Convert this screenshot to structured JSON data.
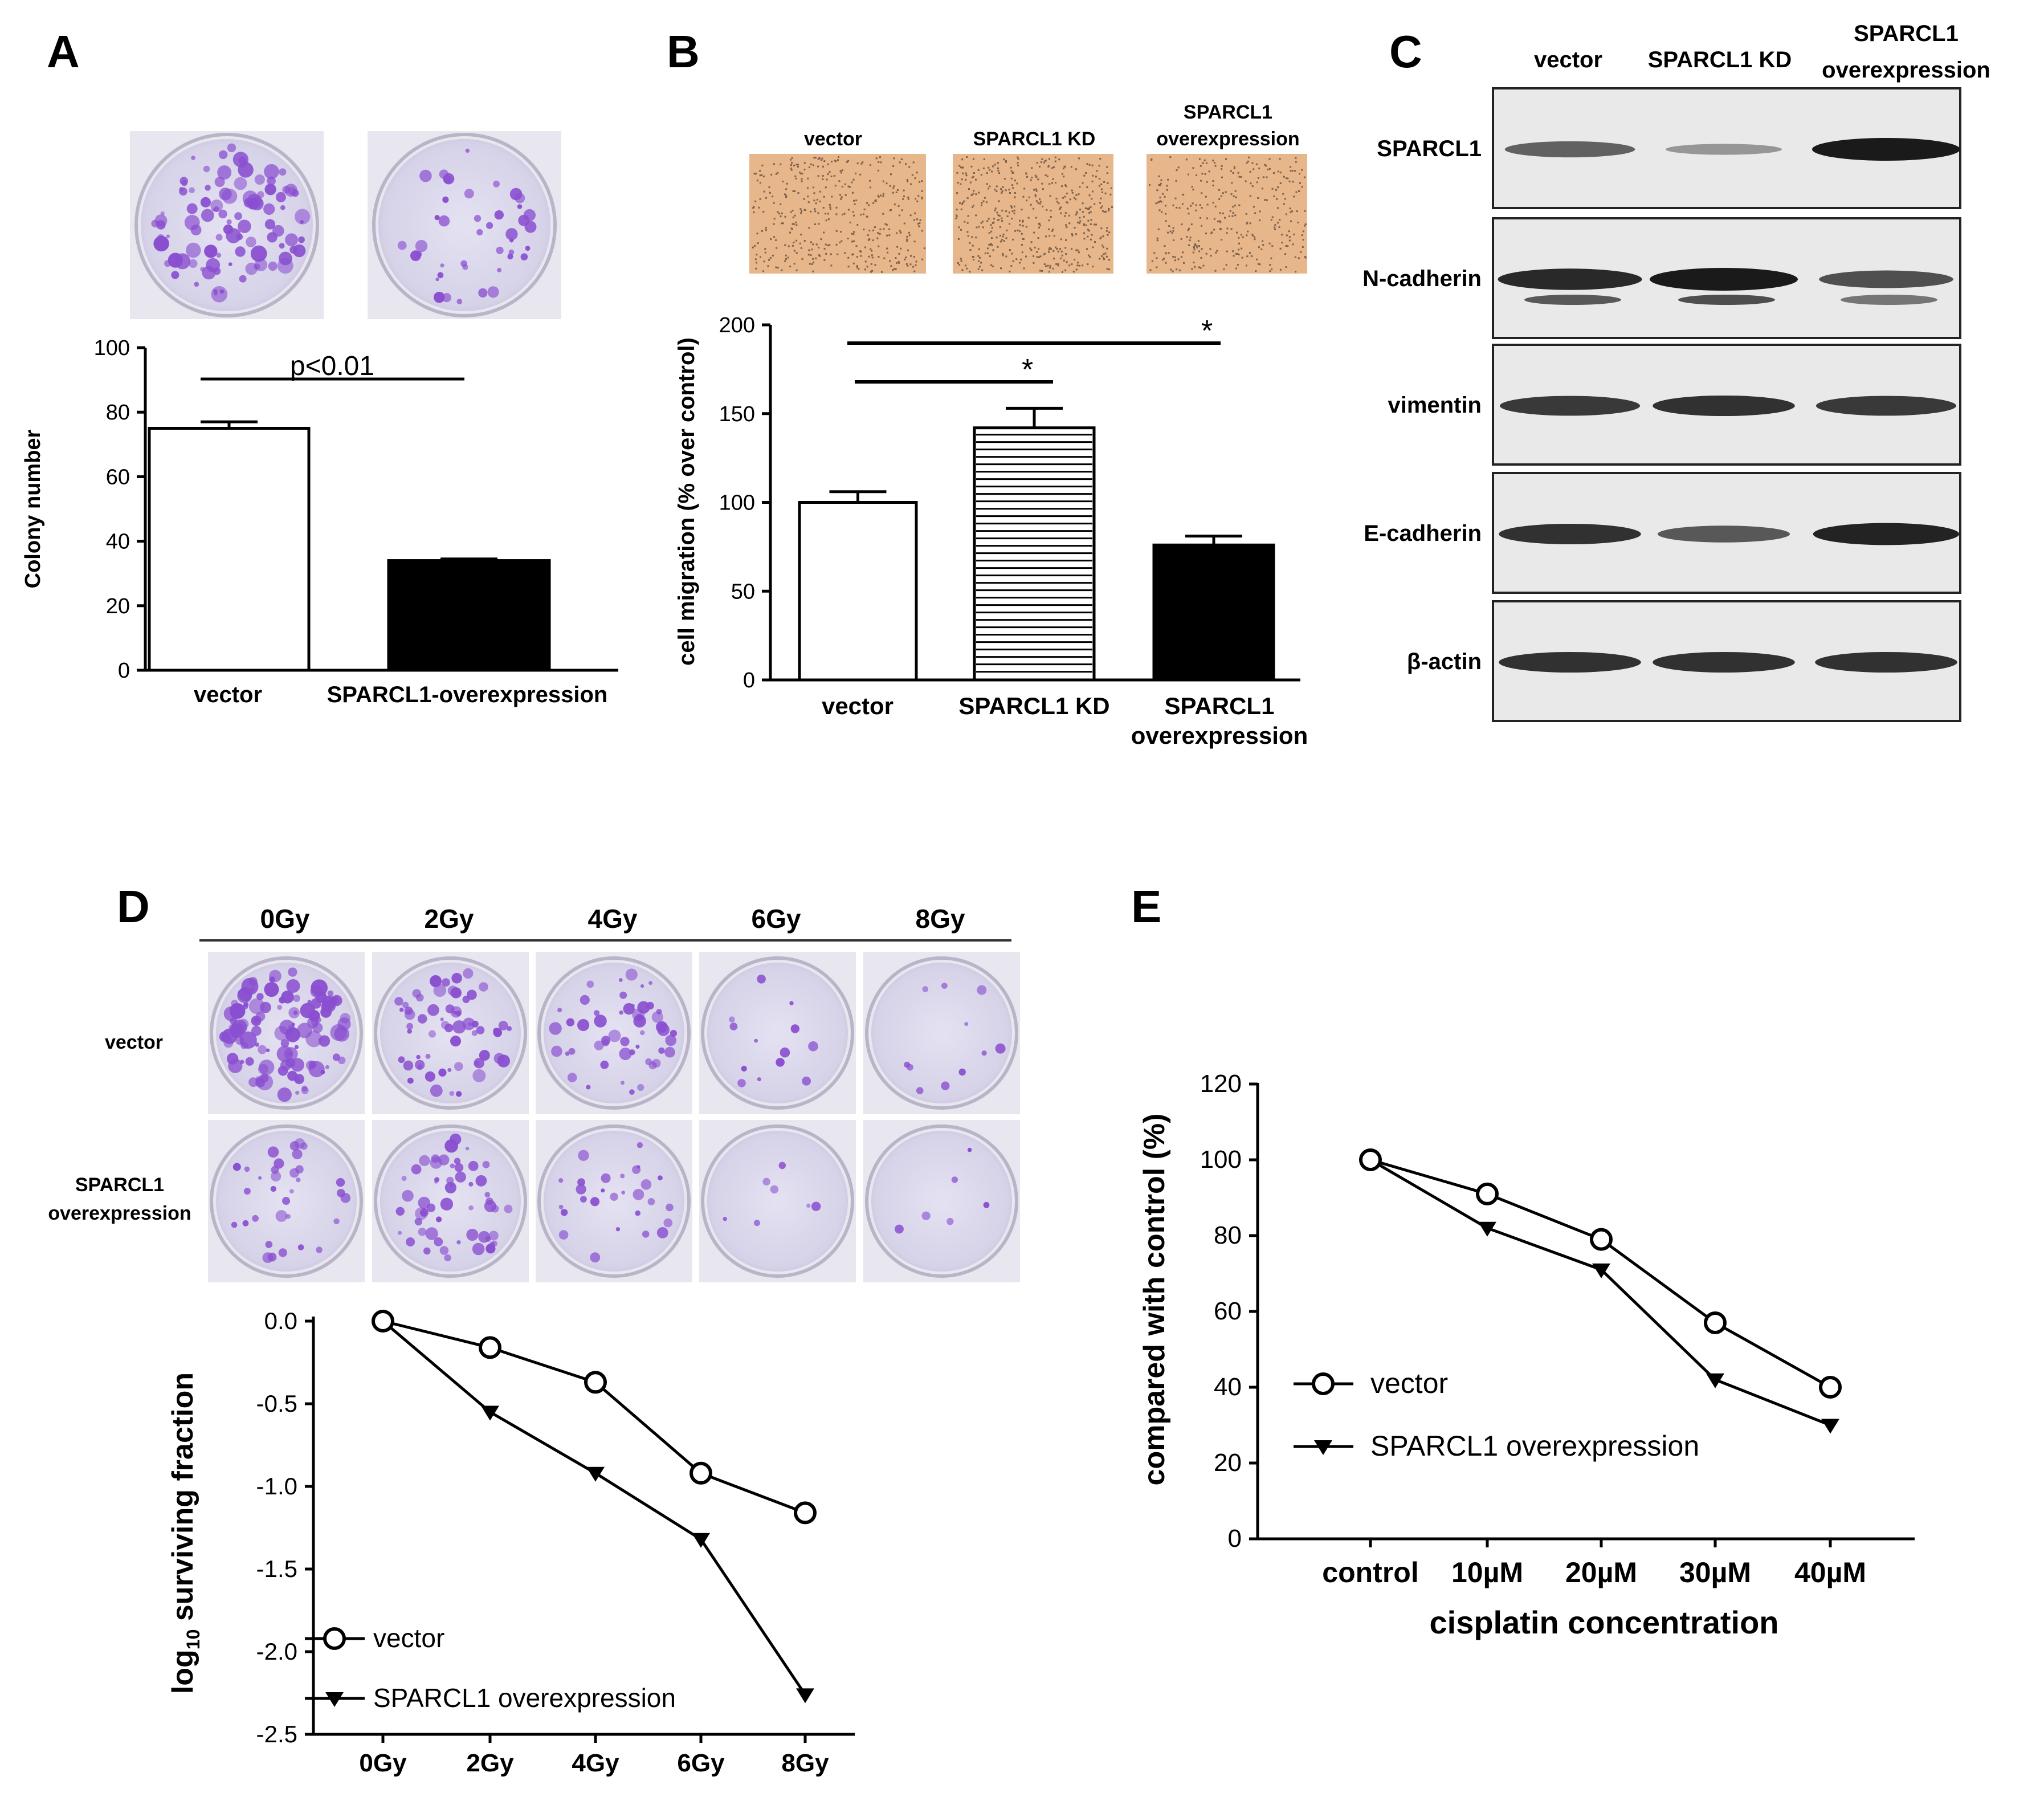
{
  "panel_labels": {
    "a": "A",
    "b": "B",
    "c": "C",
    "d": "D",
    "e": "E"
  },
  "colors": {
    "plate_bg": "#dcdaeb",
    "colony": "#8a4fd0",
    "migration_bg": "#e7b68a",
    "blot_band": "#1a1a1a"
  },
  "chart_data": [
    {
      "panel": "A",
      "type": "bar",
      "categories": [
        "vector",
        "SPARCL1-overexpression"
      ],
      "values": [
        75,
        34
      ],
      "errors": [
        2,
        0.5
      ],
      "ylabel": "Colony number",
      "ylim": [
        0,
        100
      ],
      "yticks": [
        "0",
        "20",
        "40",
        "60",
        "80",
        "100"
      ],
      "annotations": [
        "p<0.01"
      ]
    },
    {
      "panel": "B",
      "type": "bar",
      "categories": [
        "vector",
        "SPARCL1 KD",
        "SPARCL1 overexpression"
      ],
      "values": [
        100,
        142,
        76
      ],
      "errors": [
        6,
        11,
        5
      ],
      "ylabel": "cell migration (% over control)",
      "ylim": [
        0,
        200
      ],
      "yticks": [
        "0",
        "50",
        "100",
        "150",
        "200"
      ],
      "annotations": [
        "*",
        "*"
      ]
    },
    {
      "panel": "D",
      "type": "line",
      "x": [
        "0Gy",
        "2Gy",
        "4Gy",
        "6Gy",
        "8Gy"
      ],
      "series": [
        {
          "name": "vector",
          "values": [
            0,
            -0.16,
            -0.37,
            -0.92,
            -1.16
          ]
        },
        {
          "name": "SPARCL1 overexpression",
          "values": [
            0,
            -0.55,
            -0.92,
            -1.32,
            -2.26
          ]
        }
      ],
      "ylabel_main": "log",
      "ylabel_sub": "10",
      "ylabel_rest": " surviving fraction",
      "ylim": [
        -2.5,
        0
      ],
      "yticks": [
        "0.0",
        "-0.5",
        "-1.0",
        "-1.5",
        "-2.0",
        "-2.5"
      ],
      "legend": "bottom-left"
    },
    {
      "panel": "E",
      "type": "line",
      "x": [
        "control",
        "10µM",
        "20µM",
        "30µM",
        "40µM"
      ],
      "series": [
        {
          "name": "vector",
          "values": [
            100,
            91,
            79,
            57,
            40
          ]
        },
        {
          "name": "SPARCL1 overexpression",
          "values": [
            100,
            82,
            71,
            42,
            30
          ]
        }
      ],
      "xlabel": "cisplatin concentration",
      "ylabel": "compared with control (%)",
      "ylim": [
        0,
        120
      ],
      "yticks": [
        "0",
        "20",
        "40",
        "60",
        "80",
        "100",
        "120"
      ],
      "legend": "bottom-left"
    }
  ],
  "panel_b_images": {
    "labels": [
      "vector",
      "SPARCL1 KD",
      "SPARCL1",
      "overexpression"
    ]
  },
  "western_blot": {
    "columns": [
      "vector",
      "SPARCL1 KD",
      "SPARCL1",
      "overexpression"
    ],
    "rows": [
      {
        "label": "SPARCL1",
        "intensity": [
          0.55,
          0.2,
          1.0
        ]
      },
      {
        "label": "N-cadherin",
        "intensity": [
          0.9,
          1.0,
          0.65
        ]
      },
      {
        "label": "vimentin",
        "intensity": [
          0.8,
          0.85,
          0.8
        ]
      },
      {
        "label": "E-cadherin",
        "intensity": [
          0.85,
          0.6,
          0.95
        ]
      },
      {
        "label": "β-actin",
        "intensity": [
          0.85,
          0.85,
          0.85
        ]
      }
    ]
  },
  "panel_d_plates": {
    "doses": [
      "0Gy",
      "2Gy",
      "4Gy",
      "6Gy",
      "8Gy"
    ],
    "row_labels": [
      "vector",
      "SPARCL1",
      "overexpression"
    ],
    "vector_density": [
      1.0,
      0.55,
      0.45,
      0.12,
      0.1
    ],
    "sparcl1_density": [
      0.3,
      0.5,
      0.25,
      0.06,
      0.05
    ]
  }
}
